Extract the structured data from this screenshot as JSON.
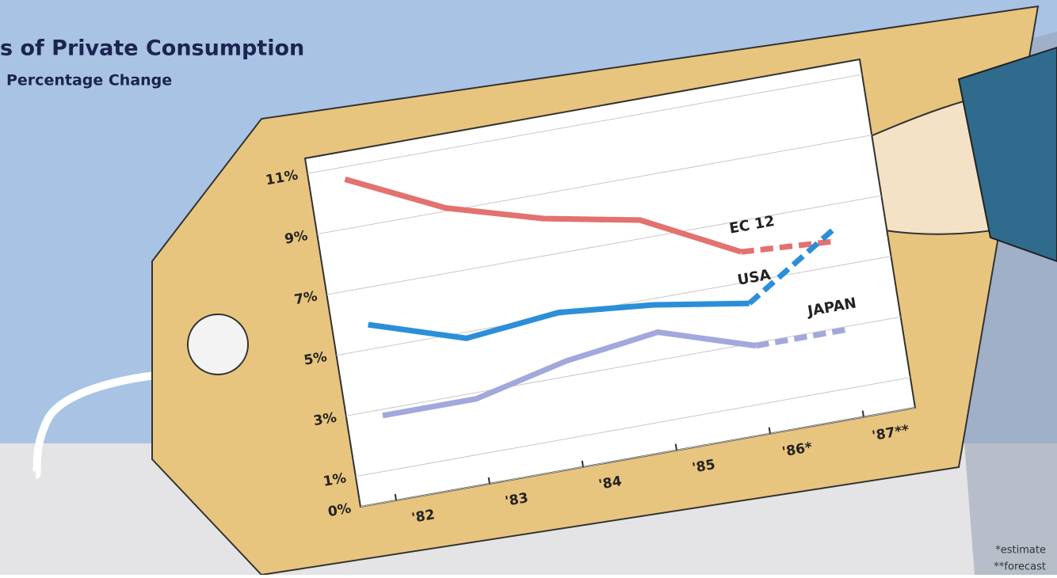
{
  "chart_data": {
    "type": "line",
    "title": "s of Private Consumption",
    "subtitle": "Percentage Change",
    "categories": [
      "'82",
      "'83",
      "'84",
      "'85",
      "'86*",
      "'87**"
    ],
    "series": [
      {
        "name": "EC 12",
        "color": "#e3716f",
        "values": [
          10.6,
          9.1,
          8.2,
          7.6,
          6.0,
          5.8
        ]
      },
      {
        "name": "USA",
        "color": "#2b8fd8",
        "values": [
          5.8,
          4.8,
          5.1,
          4.8,
          4.3,
          6.2
        ]
      },
      {
        "name": "JAPAN",
        "color": "#a2a8dc",
        "values": [
          2.8,
          2.8,
          3.5,
          3.9,
          2.9,
          2.9
        ]
      }
    ],
    "ylim": [
      0,
      11.5
    ],
    "yticks": [
      {
        "value": 0,
        "label": "0%"
      },
      {
        "value": 1,
        "label": "1%"
      },
      {
        "value": 3,
        "label": "3%"
      },
      {
        "value": 5,
        "label": "5%"
      },
      {
        "value": 7,
        "label": "7%"
      },
      {
        "value": 9,
        "label": "9%"
      },
      {
        "value": 11,
        "label": "11%"
      }
    ],
    "grid": true,
    "dashed_last_segment": true,
    "notes": [
      "*estimate",
      "**forecast"
    ]
  }
}
